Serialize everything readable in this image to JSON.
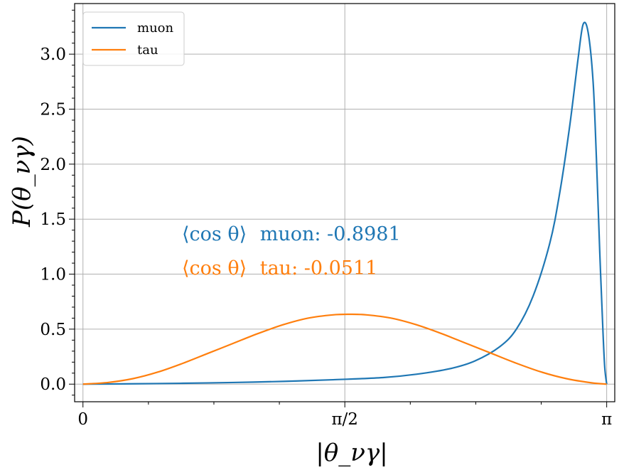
{
  "chart_data": {
    "type": "line",
    "title": "",
    "xlabel": "|θ_νγ|",
    "ylabel": "P(θ_νγ)",
    "xlim": [
      -0.05,
      3.19
    ],
    "ylim": [
      -0.16,
      3.46
    ],
    "x_ticks": [
      {
        "value": 0,
        "label": "0"
      },
      {
        "value": 1.5708,
        "label": "π/2"
      },
      {
        "value": 3.1416,
        "label": "π"
      }
    ],
    "y_ticks": [
      {
        "value": 0.0,
        "label": "0.0"
      },
      {
        "value": 0.5,
        "label": "0.5"
      },
      {
        "value": 1.0,
        "label": "1.0"
      },
      {
        "value": 1.5,
        "label": "1.5"
      },
      {
        "value": 2.0,
        "label": "2.0"
      },
      {
        "value": 2.5,
        "label": "2.5"
      },
      {
        "value": 3.0,
        "label": "3.0"
      }
    ],
    "grid": true,
    "legend_position": "top-left",
    "series": [
      {
        "name": "muon",
        "color": "#1f77b4",
        "x": [
          0,
          0.3,
          0.6,
          0.9,
          1.2,
          1.5,
          1.8,
          2.0,
          2.2,
          2.35,
          2.5,
          2.6,
          2.7,
          2.8,
          2.86,
          2.92,
          2.97,
          3.0,
          3.03,
          3.06,
          3.08,
          3.1,
          3.12,
          3.13,
          3.1416
        ],
        "y": [
          0,
          0.003,
          0.008,
          0.015,
          0.025,
          0.04,
          0.06,
          0.09,
          0.14,
          0.21,
          0.34,
          0.5,
          0.8,
          1.28,
          1.74,
          2.35,
          2.96,
          3.27,
          3.2,
          2.75,
          2.05,
          1.2,
          0.45,
          0.15,
          0
        ]
      },
      {
        "name": "tau",
        "color": "#ff7f0e",
        "x": [
          0,
          0.15,
          0.3,
          0.45,
          0.6,
          0.75,
          0.9,
          1.05,
          1.2,
          1.35,
          1.5,
          1.6,
          1.7,
          1.85,
          2.0,
          2.15,
          2.3,
          2.45,
          2.6,
          2.75,
          2.9,
          3.05,
          3.1416
        ],
        "y": [
          0,
          0.015,
          0.05,
          0.11,
          0.19,
          0.28,
          0.37,
          0.46,
          0.54,
          0.6,
          0.63,
          0.635,
          0.63,
          0.6,
          0.54,
          0.46,
          0.37,
          0.28,
          0.19,
          0.11,
          0.05,
          0.012,
          0
        ]
      }
    ],
    "annotations": [
      {
        "label_prefix": "⟨cos θ⟩",
        "label_text": "muon: -0.8981",
        "color": "#1f77b4"
      },
      {
        "label_prefix": "⟨cos θ⟩",
        "label_text": "tau: -0.0511",
        "color": "#ff7f0e"
      }
    ]
  }
}
